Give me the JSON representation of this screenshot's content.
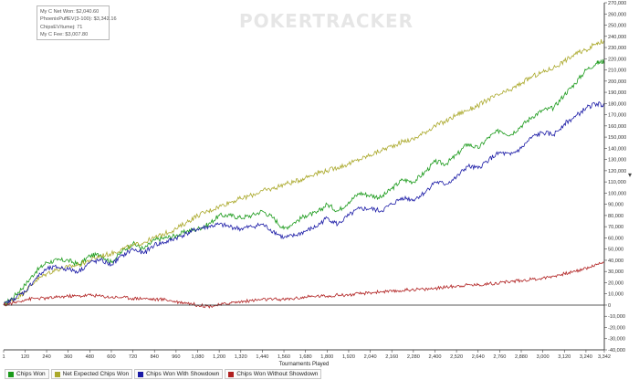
{
  "watermark": "POKERTRACKER",
  "stats": {
    "line1": "My C Net Won: $2,040.60",
    "line2": "PhoenixPuffEV(3-100): $3,342.16",
    "line3": "ChipsEV/tumej: 71",
    "line4": "My C Fee: $3,007.80"
  },
  "resize_glyph": "▾",
  "colors": {
    "chips_won": "#1a9a1a",
    "net_expected": "#aaa82a",
    "with_showdown": "#1a1aa6",
    "without_showdown": "#b02020",
    "axis": "#444444",
    "zero_line": "#222222"
  },
  "chart_data": {
    "type": "line",
    "title": "",
    "xlabel": "Tournaments Played",
    "ylabel": "",
    "xlim": [
      1,
      3342
    ],
    "ylim": [
      -40000,
      270000
    ],
    "x_ticks": [
      1,
      120,
      240,
      360,
      480,
      600,
      720,
      840,
      960,
      1080,
      1200,
      1320,
      1440,
      1560,
      1680,
      1800,
      1920,
      2040,
      2160,
      2280,
      2400,
      2520,
      2640,
      2760,
      2880,
      3000,
      3120,
      3240,
      3342
    ],
    "x_tick_labels": [
      "1",
      "120",
      "240",
      "360",
      "480",
      "600",
      "720",
      "840",
      "960",
      "1,080",
      "1,200",
      "1,320",
      "1,440",
      "1,560",
      "1,680",
      "1,800",
      "1,920",
      "2,040",
      "2,160",
      "2,280",
      "2,400",
      "2,520",
      "2,640",
      "2,760",
      "2,880",
      "3,000",
      "3,120",
      "3,240",
      "3,342"
    ],
    "y_ticks": [
      -40000,
      -30000,
      -20000,
      -10000,
      0,
      10000,
      20000,
      30000,
      40000,
      50000,
      60000,
      70000,
      80000,
      90000,
      100000,
      110000,
      120000,
      130000,
      140000,
      150000,
      160000,
      170000,
      180000,
      190000,
      200000,
      210000,
      220000,
      230000,
      240000,
      250000,
      260000,
      270000
    ],
    "y_tick_labels": [
      "-40,000",
      "-30,000",
      "-20,000",
      "-10,000",
      "0",
      "10,000",
      "20,000",
      "30,000",
      "40,000",
      "50,000",
      "60,000",
      "70,000",
      "80,000",
      "90,000",
      "100,000",
      "110,000",
      "120,000",
      "130,000",
      "140,000",
      "150,000",
      "160,000",
      "170,000",
      "180,000",
      "190,000",
      "200,000",
      "210,000",
      "220,000",
      "230,000",
      "240,000",
      "250,000",
      "260,000",
      "270,000"
    ],
    "y_axis_side": "right",
    "grid": false,
    "legend_position": "bottom-left",
    "series": [
      {
        "name": "Chips Won",
        "color": "#1a9a1a",
        "x": [
          1,
          60,
          120,
          180,
          240,
          300,
          360,
          420,
          480,
          540,
          600,
          660,
          720,
          780,
          840,
          900,
          960,
          1020,
          1080,
          1140,
          1200,
          1260,
          1320,
          1380,
          1440,
          1500,
          1560,
          1620,
          1680,
          1740,
          1800,
          1860,
          1920,
          1980,
          2040,
          2100,
          2160,
          2220,
          2280,
          2340,
          2400,
          2460,
          2520,
          2580,
          2640,
          2700,
          2760,
          2820,
          2880,
          2940,
          3000,
          3060,
          3120,
          3180,
          3240,
          3300,
          3342
        ],
        "y": [
          0,
          8000,
          18000,
          30000,
          38000,
          40000,
          40000,
          36000,
          44000,
          45000,
          38000,
          48000,
          55000,
          50000,
          58000,
          60000,
          62000,
          66000,
          68000,
          72000,
          80000,
          80000,
          78000,
          80000,
          84000,
          78000,
          68000,
          74000,
          80000,
          82000,
          90000,
          84000,
          92000,
          100000,
          98000,
          96000,
          104000,
          112000,
          110000,
          118000,
          128000,
          126000,
          134000,
          144000,
          140000,
          150000,
          156000,
          152000,
          160000,
          168000,
          174000,
          176000,
          188000,
          198000,
          210000,
          216000,
          218000
        ]
      },
      {
        "name": "Net Expected Chips Won",
        "color": "#aaa82a",
        "x": [
          1,
          60,
          120,
          180,
          240,
          300,
          360,
          420,
          480,
          540,
          600,
          660,
          720,
          780,
          840,
          900,
          960,
          1020,
          1080,
          1140,
          1200,
          1260,
          1320,
          1380,
          1440,
          1500,
          1560,
          1620,
          1680,
          1740,
          1800,
          1860,
          1920,
          1980,
          2040,
          2100,
          2160,
          2220,
          2280,
          2340,
          2400,
          2460,
          2520,
          2580,
          2640,
          2700,
          2760,
          2820,
          2880,
          2940,
          3000,
          3060,
          3120,
          3180,
          3240,
          3300,
          3342
        ],
        "y": [
          0,
          5000,
          12000,
          22000,
          28000,
          32000,
          34000,
          36000,
          40000,
          44000,
          46000,
          50000,
          53000,
          56000,
          60000,
          64000,
          68000,
          74000,
          80000,
          84000,
          88000,
          92000,
          95000,
          98000,
          102000,
          104000,
          108000,
          110000,
          114000,
          118000,
          120000,
          123000,
          126000,
          130000,
          134000,
          138000,
          142000,
          146000,
          148000,
          154000,
          160000,
          164000,
          170000,
          174000,
          178000,
          184000,
          188000,
          192000,
          198000,
          204000,
          208000,
          212000,
          218000,
          224000,
          228000,
          234000,
          236000
        ]
      },
      {
        "name": "Chips Won With Showdown",
        "color": "#1a1aa6",
        "x": [
          1,
          60,
          120,
          180,
          240,
          300,
          360,
          420,
          480,
          540,
          600,
          660,
          720,
          780,
          840,
          900,
          960,
          1020,
          1080,
          1140,
          1200,
          1260,
          1320,
          1380,
          1440,
          1500,
          1560,
          1620,
          1680,
          1740,
          1800,
          1860,
          1920,
          1980,
          2040,
          2100,
          2160,
          2220,
          2280,
          2340,
          2400,
          2460,
          2520,
          2580,
          2640,
          2700,
          2760,
          2820,
          2880,
          2940,
          3000,
          3060,
          3120,
          3180,
          3240,
          3300,
          3342
        ],
        "y": [
          0,
          6000,
          12000,
          24000,
          32000,
          34000,
          32000,
          30000,
          38000,
          40000,
          36000,
          44000,
          50000,
          46000,
          54000,
          56000,
          60000,
          64000,
          68000,
          70000,
          72000,
          70000,
          68000,
          70000,
          72000,
          66000,
          60000,
          62000,
          66000,
          70000,
          78000,
          72000,
          80000,
          86000,
          86000,
          84000,
          90000,
          96000,
          94000,
          100000,
          110000,
          108000,
          114000,
          124000,
          122000,
          130000,
          136000,
          134000,
          140000,
          150000,
          154000,
          152000,
          162000,
          168000,
          176000,
          180000,
          178000
        ]
      },
      {
        "name": "Chips Won Without Showdown",
        "color": "#b02020",
        "x": [
          1,
          60,
          120,
          180,
          240,
          300,
          360,
          420,
          480,
          540,
          600,
          660,
          720,
          780,
          840,
          900,
          960,
          1020,
          1080,
          1140,
          1200,
          1260,
          1320,
          1380,
          1440,
          1500,
          1560,
          1620,
          1680,
          1740,
          1800,
          1860,
          1920,
          1980,
          2040,
          2100,
          2160,
          2220,
          2280,
          2340,
          2400,
          2460,
          2520,
          2580,
          2640,
          2700,
          2760,
          2820,
          2880,
          2940,
          3000,
          3060,
          3120,
          3180,
          3240,
          3300,
          3342
        ],
        "y": [
          0,
          2000,
          5000,
          6000,
          6000,
          7000,
          8000,
          8000,
          9000,
          8000,
          7000,
          7000,
          6000,
          6000,
          5000,
          5000,
          3000,
          2000,
          0,
          -1000,
          0,
          2000,
          3000,
          4000,
          5000,
          5000,
          5000,
          6000,
          7000,
          8000,
          8000,
          9000,
          9000,
          10000,
          11000,
          12000,
          12000,
          13000,
          14000,
          14000,
          15000,
          16000,
          17000,
          18000,
          18000,
          19000,
          20000,
          21000,
          22000,
          23000,
          24000,
          26000,
          28000,
          30000,
          33000,
          36000,
          39000
        ]
      }
    ]
  }
}
